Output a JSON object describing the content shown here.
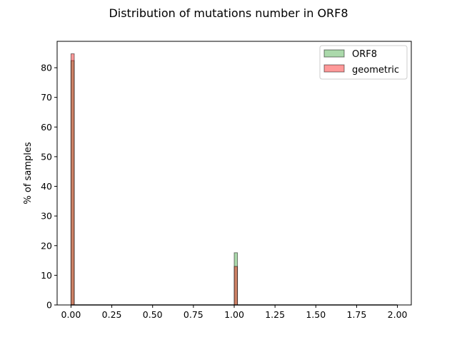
{
  "chart_data": {
    "type": "bar",
    "title": "Distribution of mutations number in ORF8",
    "xlabel": "",
    "ylabel": "% of samples",
    "xlim": [
      -0.085,
      2.085
    ],
    "ylim": [
      0,
      88.9
    ],
    "x_ticks": [
      "0.00",
      "0.25",
      "0.50",
      "0.75",
      "1.00",
      "1.25",
      "1.50",
      "1.75",
      "2.00"
    ],
    "x_tick_values": [
      0,
      0.25,
      0.5,
      0.75,
      1.0,
      1.25,
      1.5,
      1.75,
      2.0
    ],
    "y_ticks": [
      "0",
      "10",
      "20",
      "30",
      "40",
      "50",
      "60",
      "70",
      "80"
    ],
    "y_tick_values": [
      0,
      10,
      20,
      30,
      40,
      50,
      60,
      70,
      80
    ],
    "bin_width": 0.02,
    "grid": false,
    "legend_position": "top-right",
    "series": [
      {
        "name": "ORF8",
        "color": "#2ca02c",
        "bins": [
          {
            "x": 0.0,
            "value": 82.4
          },
          {
            "x": 1.0,
            "value": 17.6
          }
        ]
      },
      {
        "name": "geometric",
        "color": "#ff0000",
        "bins": [
          {
            "x": 0.0,
            "value": 84.7
          },
          {
            "x": 1.0,
            "value": 13.0
          }
        ]
      }
    ]
  }
}
